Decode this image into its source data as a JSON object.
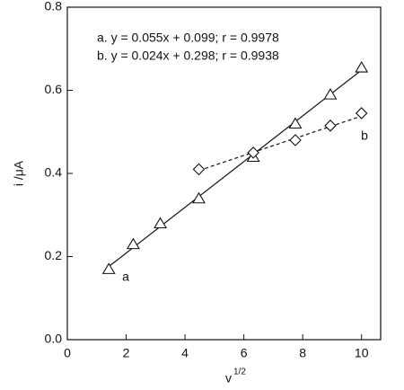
{
  "chart_data": {
    "type": "scatter",
    "xlabel": "v",
    "xlabel_sup": "1/2",
    "ylabel": "i /μA",
    "annotations": [
      "a.  y = 0.055x + 0.099;  r = 0.9978",
      "b.  y = 0.024x + 0.298;  r = 0.9938"
    ],
    "xlim": [
      0,
      10.65
    ],
    "ylim": [
      0,
      0.8
    ],
    "xticks": [
      0,
      2,
      4,
      6,
      8,
      10
    ],
    "yticks": [
      {
        "value": 0,
        "label": "0.0"
      },
      {
        "value": 0.2,
        "label": "0.2"
      },
      {
        "value": 0.4,
        "label": "0.4"
      },
      {
        "value": 0.6,
        "label": "0.6"
      },
      {
        "value": 0.8,
        "label": "0.8"
      }
    ],
    "series": [
      {
        "name": "a",
        "marker": "triangle",
        "color": "#111111",
        "x": [
          1.41,
          2.24,
          3.16,
          4.47,
          6.32,
          7.75,
          8.94,
          10.0
        ],
        "values": [
          0.17,
          0.23,
          0.28,
          0.34,
          0.44,
          0.52,
          0.59,
          0.655
        ]
      },
      {
        "name": "b",
        "marker": "diamond",
        "color": "#111111",
        "x": [
          4.47,
          6.32,
          7.75,
          8.94,
          10.0
        ],
        "values": [
          0.41,
          0.45,
          0.48,
          0.515,
          0.545
        ]
      }
    ],
    "fits": [
      {
        "dashed": false,
        "x": [
          1.3,
          10.1
        ],
        "values": [
          0.17,
          0.654
        ]
      },
      {
        "dashed": true,
        "x": [
          4.47,
          10.0
        ],
        "values": [
          0.407,
          0.538
        ]
      }
    ]
  }
}
